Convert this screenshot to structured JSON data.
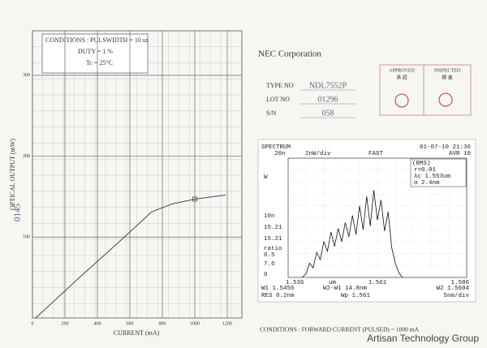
{
  "left_chart": {
    "conditions": [
      "CONDITIONS : PULSWIDTH = 10 us",
      "DUTY = 1 %",
      "Tc = 25°C"
    ],
    "y_label": "OPTICAL OUTPUT (mW)",
    "x_label": "CURRENT (mA)",
    "handwritten": "0145",
    "xlim": [
      0,
      1290
    ],
    "ylim": [
      0,
      355
    ],
    "xticks": [
      0,
      200,
      400,
      600,
      800,
      1000,
      1200
    ],
    "yticks": [
      100,
      200,
      300
    ],
    "x": [
      20,
      300,
      555,
      733,
      860,
      1000,
      1190
    ],
    "values": [
      0,
      52,
      98,
      131,
      141,
      147,
      152
    ],
    "marker": {
      "x": 1000,
      "value": 147
    }
  },
  "header": {
    "company": "NEC Corporation",
    "fields": [
      {
        "label": "TYPE NO",
        "value": "NDL7552P"
      },
      {
        "label": "LOT NO",
        "value": "01296"
      },
      {
        "label": "S/N",
        "value": "058"
      }
    ],
    "approved": "APPROVED",
    "approved_sub": "承 認",
    "inspected": "INSPECTED",
    "inspected_sub": "検 査"
  },
  "spectrum": {
    "title": "SPECTRUM",
    "datetime": "01-07-10 21:36",
    "ref": "20n",
    "scale": "2nW/div",
    "speed": "FAST",
    "avg": "AVR 10",
    "left_labels": [
      "W",
      "10n",
      "15.21",
      "15.21",
      "ratio",
      "0.5",
      "7.6",
      "0"
    ],
    "rms_box": [
      "(RMS)",
      "r=0.01",
      "λc 1.553um",
      "σ 2.4nm"
    ],
    "x_labels": [
      "1.536",
      "um",
      "1.561",
      "1.586"
    ],
    "footer": [
      "W1 1.5456",
      "W2-W1 14.8nm",
      "W2 1.5604",
      "RES 0.2nm",
      "Wp 1.561",
      "5nm/div"
    ],
    "xlim": [
      1.536,
      1.586
    ],
    "ylim": [
      0,
      10
    ],
    "x": [
      1.54,
      1.541,
      1.542,
      1.543,
      1.544,
      1.545,
      1.546,
      1.547,
      1.548,
      1.549,
      1.55,
      1.551,
      1.552,
      1.553,
      1.554,
      1.555,
      1.556,
      1.557,
      1.558,
      1.559,
      1.56,
      1.561,
      1.562,
      1.563,
      1.564,
      1.565,
      1.566,
      1.567,
      1.568
    ],
    "values": [
      0,
      0.3,
      1.2,
      0.8,
      2.1,
      1.5,
      3.0,
      2.2,
      3.8,
      2.6,
      4.1,
      3.0,
      4.6,
      3.4,
      5.2,
      3.6,
      6.0,
      4.0,
      6.8,
      4.3,
      7.3,
      4.8,
      6.5,
      3.9,
      5.5,
      2.5,
      1.2,
      0.4,
      0
    ]
  },
  "conditions_bottom": "CONDITIONS : FORWARD CURRENT (PULSED) = 1000 mA",
  "watermark": "Artisan Technology Group"
}
